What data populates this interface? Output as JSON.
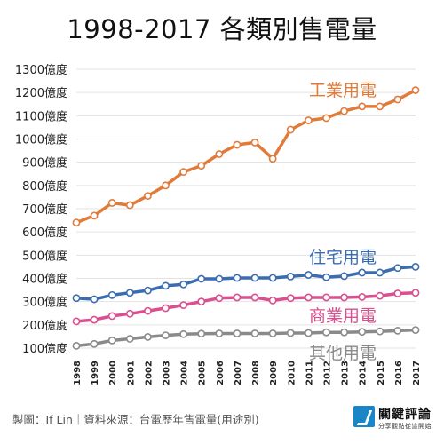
{
  "title": "1998-2017 各類別售電量",
  "footer": {
    "credit": "製圖：If Lin｜資料來源：台電歷年售電量(用途別)"
  },
  "logo": {
    "name": "關鍵評論",
    "tagline": "分享觀點從這開始"
  },
  "chart_data": {
    "type": "line",
    "title": "1998-2017 各類別售電量",
    "x": [
      "1998",
      "1999",
      "2000",
      "2001",
      "2002",
      "2003",
      "2004",
      "2005",
      "2006",
      "2007",
      "2008",
      "2009",
      "2010",
      "2011",
      "2012",
      "2013",
      "2014",
      "2015",
      "2016",
      "2017"
    ],
    "y_ticks": [
      "100億度",
      "200億度",
      "300億度",
      "400億度",
      "500億度",
      "600億度",
      "700億度",
      "800億度",
      "900億度",
      "1000億度",
      "1100億度",
      "1200億度",
      "1300億度"
    ],
    "ylim": [
      100,
      1300
    ],
    "grid": true,
    "series": [
      {
        "name": "工業用電",
        "color": "#e07b39",
        "values": [
          640,
          670,
          725,
          715,
          755,
          800,
          858,
          885,
          935,
          975,
          985,
          915,
          1040,
          1080,
          1090,
          1120,
          1140,
          1140,
          1170,
          1210
        ]
      },
      {
        "name": "住宅用電",
        "color": "#3b6cb0",
        "values": [
          315,
          310,
          328,
          338,
          348,
          368,
          374,
          398,
          398,
          402,
          402,
          402,
          408,
          415,
          405,
          410,
          425,
          425,
          445,
          450
        ]
      },
      {
        "name": "商業用電",
        "color": "#d94f8f",
        "values": [
          215,
          222,
          238,
          248,
          260,
          272,
          285,
          300,
          315,
          318,
          318,
          305,
          315,
          318,
          318,
          318,
          320,
          325,
          335,
          338
        ]
      },
      {
        "name": "其他用電",
        "color": "#8a8a8a",
        "values": [
          110,
          118,
          133,
          140,
          148,
          155,
          160,
          162,
          163,
          163,
          163,
          163,
          165,
          165,
          168,
          168,
          170,
          172,
          175,
          178
        ]
      }
    ]
  }
}
